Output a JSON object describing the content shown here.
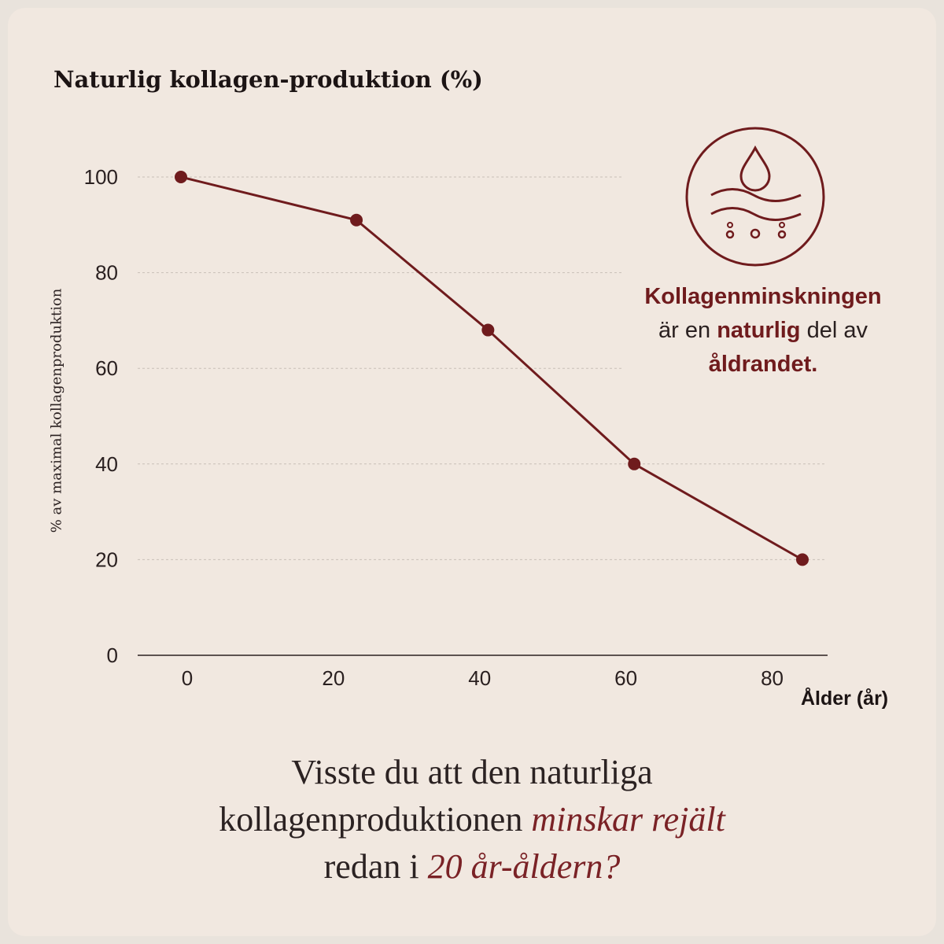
{
  "chart_data": {
    "type": "line",
    "title": "Naturlig kollagen-produktion (%)",
    "xlabel": "Ålder (år)",
    "ylabel": "% av maximal kollagenproduktion",
    "x_ticks": [
      0,
      20,
      40,
      60,
      80
    ],
    "y_ticks": [
      0,
      20,
      40,
      60,
      80,
      100
    ],
    "xlim": [
      0,
      85
    ],
    "ylim": [
      0,
      100
    ],
    "grid": true,
    "series": [
      {
        "x": [
          0,
          24,
          42,
          62,
          85
        ],
        "y": [
          100,
          91,
          68,
          40,
          20
        ]
      }
    ]
  },
  "colors": {
    "line": "#6f1b1d",
    "accent": "#6f1b1d",
    "background": "#f1e8e0",
    "grid": "#c9bfb7",
    "axis": "#2a2020"
  },
  "icon": {
    "name": "collagen-drop-skin-icon"
  },
  "side_note": {
    "part1": "Kollagenminskningen",
    "part2": "är en ",
    "part3": "naturlig",
    "part4": " del av",
    "part5": "åldrandet."
  },
  "caption": {
    "line1": "Visste du att den naturliga",
    "line2_a": "kollagenproduktionen ",
    "line2_b": "minskar rejält",
    "line3_a": "redan i ",
    "line3_b": "20 år-åldern?"
  }
}
